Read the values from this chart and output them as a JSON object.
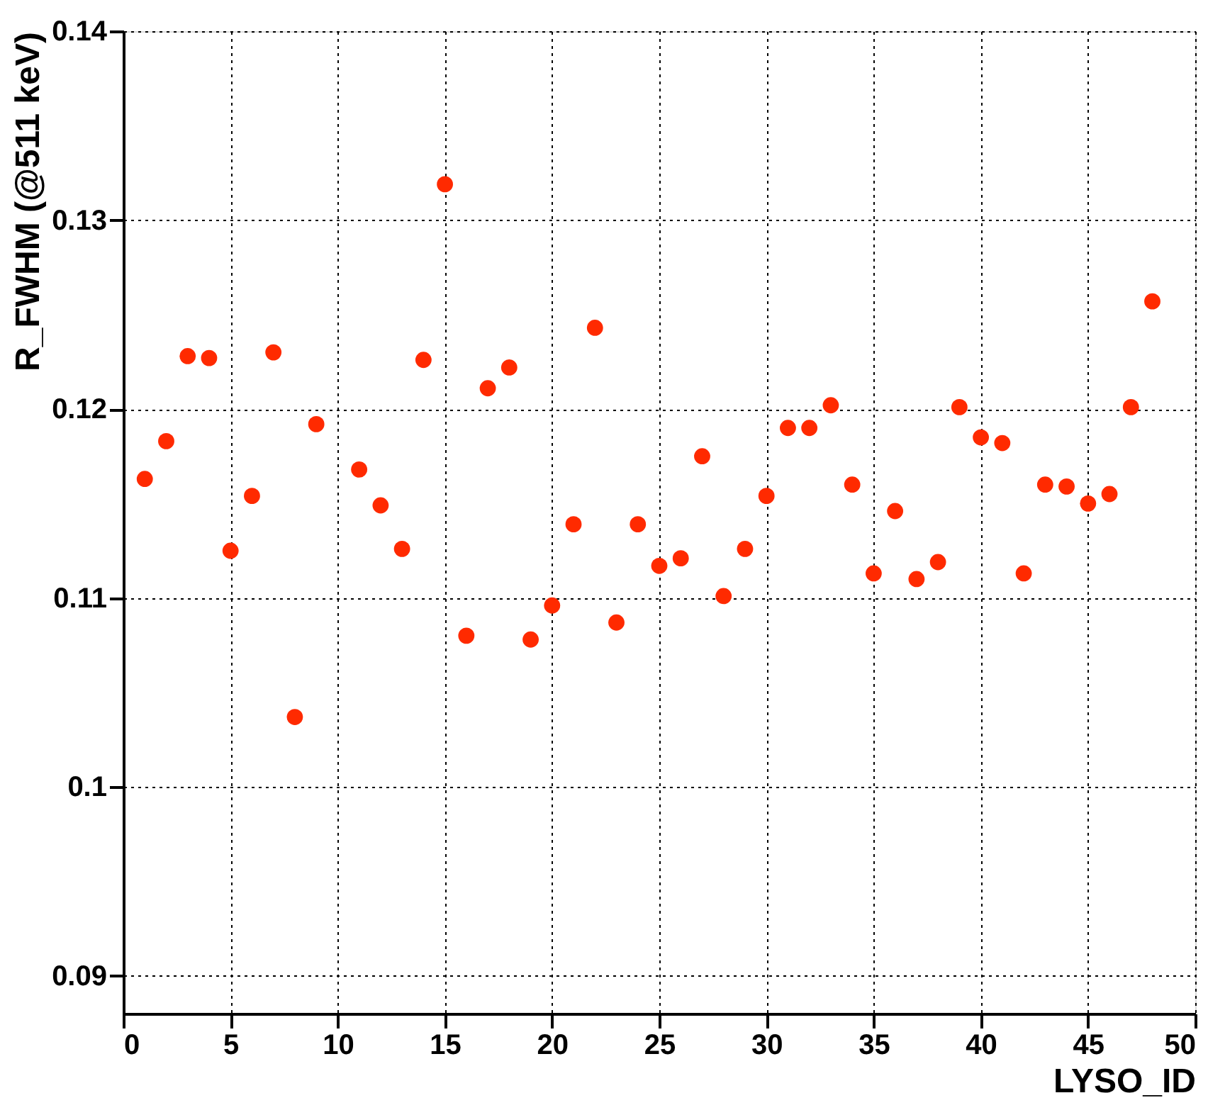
{
  "chart_data": {
    "type": "scatter",
    "xlabel": "LYSO_ID",
    "ylabel": "R_FWHM (@511 keV)",
    "x": [
      1,
      2,
      3,
      4,
      5,
      6,
      7,
      8,
      9,
      11,
      12,
      13,
      14,
      15,
      16,
      17,
      18,
      19,
      20,
      21,
      22,
      23,
      24,
      25,
      26,
      27,
      28,
      29,
      30,
      31,
      32,
      33,
      34,
      35,
      36,
      37,
      38,
      39,
      40,
      41,
      42,
      43,
      44,
      45,
      46,
      47,
      48
    ],
    "series": [
      {
        "color": "#ff2a00",
        "values": [
          0.1163,
          0.1183,
          0.1228,
          0.1227,
          0.1125,
          0.1154,
          0.123,
          0.1037,
          0.1192,
          0.1168,
          0.1149,
          0.1126,
          0.1226,
          0.1319,
          0.108,
          0.1211,
          0.1222,
          0.1078,
          0.1096,
          0.1139,
          0.1243,
          0.1087,
          0.1139,
          0.1117,
          0.1121,
          0.1175,
          0.1101,
          0.1126,
          0.1154,
          0.119,
          0.119,
          0.1202,
          0.116,
          0.1113,
          0.1146,
          0.111,
          0.1119,
          0.1201,
          0.1185,
          0.1182,
          0.1113,
          0.116,
          0.1159,
          0.115,
          0.1155,
          0.1201,
          0.1257
        ]
      }
    ],
    "xlim": [
      0,
      50
    ],
    "xticks": [
      0,
      5,
      10,
      15,
      20,
      25,
      30,
      35,
      40,
      45,
      50
    ],
    "ylim": [
      0.088,
      0.14
    ],
    "yticks": [
      0.09,
      0.1,
      0.11,
      0.12,
      0.13,
      0.14
    ],
    "grid": true,
    "marker": "circle",
    "legend": false
  }
}
